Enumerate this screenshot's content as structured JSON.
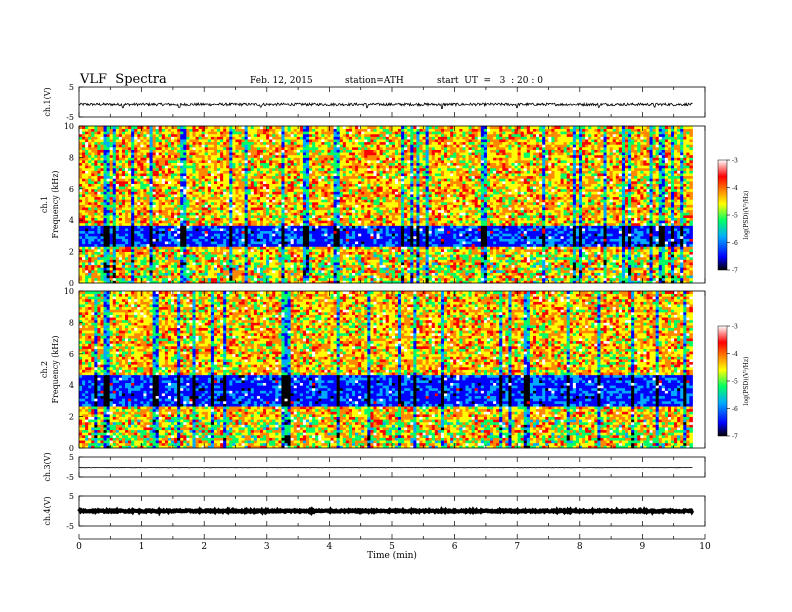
{
  "header": {
    "title": "VLF  Spectra",
    "date": "Feb. 12, 2015",
    "station": "station=ATH",
    "start": "start  UT  =   3  : 20 : 0"
  },
  "chart_data": [
    {
      "type": "line",
      "id": "ch1-waveform",
      "ylabel": "ch.1(V)",
      "ylim": [
        -5,
        5
      ],
      "y_ticks": [
        "5",
        "-5"
      ],
      "x_range_min": [
        0,
        9.8
      ],
      "baseline": -0.8,
      "noise_amp": 0.45,
      "spikes": [
        {
          "x": 0.7,
          "y": -1.9
        },
        {
          "x": 1.6,
          "y": -1.8
        },
        {
          "x": 2.9,
          "y": -1.7
        },
        {
          "x": 4.6,
          "y": -1.9
        },
        {
          "x": 5.8,
          "y": -2.2
        },
        {
          "x": 7.0,
          "y": -1.9
        },
        {
          "x": 8.3,
          "y": -1.8
        },
        {
          "x": 9.2,
          "y": -1.7
        }
      ],
      "color": "#000000"
    },
    {
      "type": "heatmap",
      "id": "ch1-spectrogram",
      "channel_label": "ch.1",
      "ylabel": "Frequency  (kHz)",
      "ylim": [
        0,
        10
      ],
      "y_ticks": [
        "0",
        "2",
        "4",
        "6",
        "8",
        "10"
      ],
      "x_range_min": [
        0,
        9.8
      ],
      "dark_band_khz": [
        2.3,
        3.6
      ],
      "colorbar": {
        "label": "log(PSD)(V²/Hz)",
        "range": [
          -7,
          -3
        ],
        "ticks": [
          "-3",
          "-4",
          "-5",
          "-6",
          "-7"
        ]
      }
    },
    {
      "type": "heatmap",
      "id": "ch2-spectrogram",
      "channel_label": "ch.2",
      "ylabel": "Frequency  (kHz)",
      "ylim": [
        0,
        10
      ],
      "y_ticks": [
        "0",
        "2",
        "4",
        "6",
        "8",
        "10"
      ],
      "x_range_min": [
        0,
        9.8
      ],
      "dark_band_khz": [
        2.6,
        4.6
      ],
      "colorbar": {
        "label": "log(PSD)(V²/Hz)",
        "range": [
          -7,
          -3
        ],
        "ticks": [
          "-3",
          "-4",
          "-5",
          "-6",
          "-7"
        ]
      }
    },
    {
      "type": "line",
      "id": "ch3-waveform",
      "ylabel": "ch.3(V)",
      "ylim": [
        -5,
        5
      ],
      "y_ticks": [
        "5",
        "-5"
      ],
      "x_range_min": [
        0,
        9.8
      ],
      "baseline": -0.3,
      "noise_amp": 0.12,
      "spikes": [],
      "color": "#000000"
    },
    {
      "type": "line",
      "id": "ch4-waveform",
      "ylabel": "ch.4(V)",
      "ylim": [
        -5,
        5
      ],
      "y_ticks": [
        "5",
        "-5"
      ],
      "x_range_min": [
        0,
        9.8
      ],
      "baseline": 0.0,
      "noise_amp": 0.25,
      "spikes": [],
      "color": "#000000"
    }
  ],
  "x_axis": {
    "label": "Time  (min)",
    "ticks": [
      "0",
      "1",
      "2",
      "3",
      "4",
      "5",
      "6",
      "7",
      "8",
      "9",
      "10"
    ],
    "range": [
      0,
      10
    ]
  },
  "colors": {
    "colormap": [
      "#000000",
      "#0000ff",
      "#00aaff",
      "#00ff66",
      "#ffff00",
      "#ff8800",
      "#ff0000",
      "#ffffff"
    ]
  }
}
